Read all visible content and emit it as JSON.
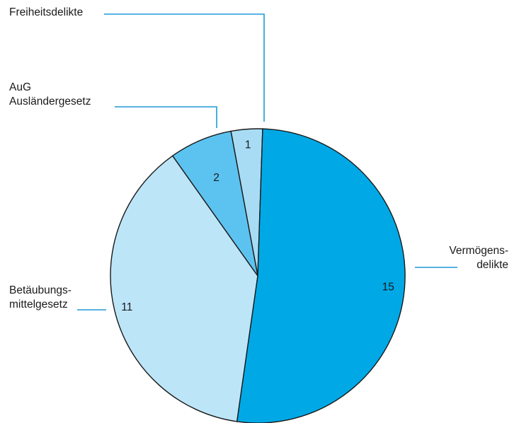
{
  "chart_data": {
    "type": "pie",
    "title": "",
    "slices": [
      {
        "label": [
          "Freiheitsdelikte"
        ],
        "value": 1,
        "value_label": "1",
        "color": "#a8dcf5"
      },
      {
        "label": [
          "Vermögens-",
          "delikte"
        ],
        "value": 15,
        "value_label": "15",
        "color": "#00a9e6"
      },
      {
        "label": [
          "Betäubungs-",
          "mittelgesetz"
        ],
        "value": 11,
        "value_label": "11",
        "color": "#bde5f8"
      },
      {
        "label": [
          "AuG",
          "Ausländergesetz"
        ],
        "value": 2,
        "value_label": "2",
        "color": "#5cc3f0"
      }
    ],
    "leader_color": "#1e9ad6"
  }
}
